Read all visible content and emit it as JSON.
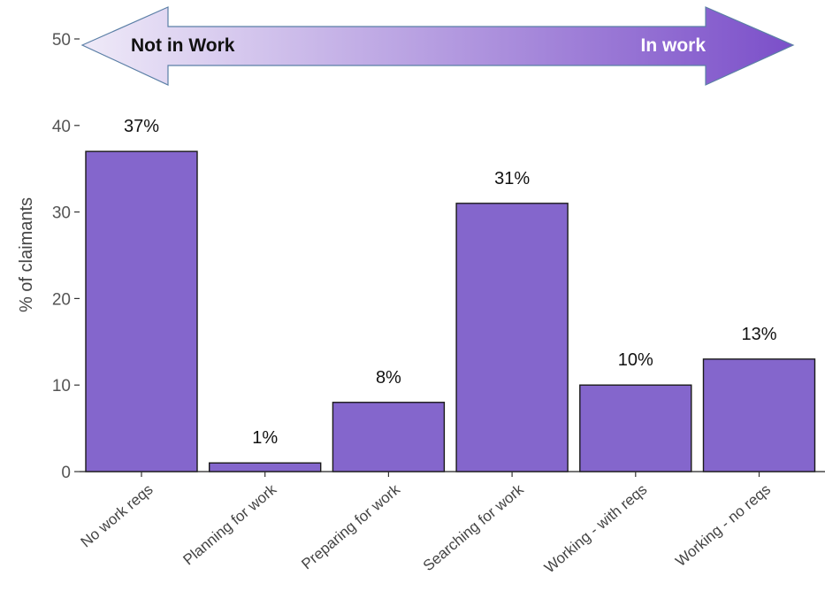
{
  "chart_data": {
    "type": "bar",
    "categories": [
      "No work reqs",
      "Planning for work",
      "Preparing for work",
      "Searching for work",
      "Working - with reqs",
      "Working - no reqs"
    ],
    "values": [
      37,
      1,
      8,
      31,
      10,
      13
    ],
    "data_labels": [
      "37%",
      "1%",
      "8%",
      "31%",
      "10%",
      "13%"
    ],
    "title": "",
    "xlabel": "",
    "ylabel": "% of claimants",
    "ylim": [
      0,
      50
    ],
    "yticks": [
      0,
      10,
      20,
      30,
      40,
      50
    ],
    "grid": false,
    "bar_color": "#8466cc",
    "bar_edge_color": "#1a1a1a",
    "annotation": {
      "left_label": "Not in Work",
      "right_label": "In work",
      "gradient_start": "#efeaf8",
      "gradient_end": "#7b4fc9",
      "outline_color": "#5b7fa6"
    }
  }
}
